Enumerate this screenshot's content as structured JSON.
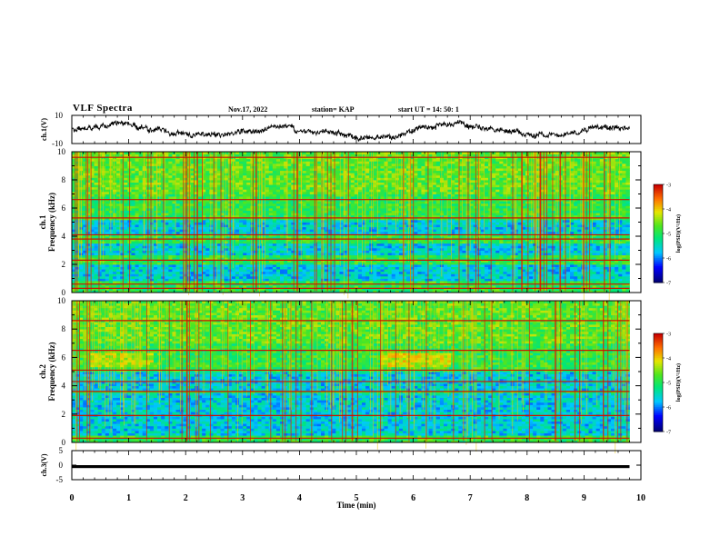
{
  "header": {
    "title": "VLF Spectra",
    "date": "Nov.17, 2022",
    "station": "station= KAP",
    "start_ut": "start  UT =   14: 50: 1"
  },
  "chart_data": [
    {
      "type": "line",
      "panel": "ch1-waveform",
      "ylabel": "ch.1(V)",
      "ylim": [
        -10,
        10
      ],
      "yticks": [
        "10",
        "-10"
      ],
      "xlim": [
        0,
        10
      ],
      "note": "noisy broadband waveform trace spanning ~0 to 9.8 min"
    },
    {
      "type": "heatmap",
      "panel": "ch1-spectrogram",
      "ylabel": "ch.1\nFrequency (kHz)",
      "ylim": [
        0,
        10
      ],
      "yticks": [
        "0",
        "2",
        "4",
        "6",
        "8",
        "10"
      ],
      "xlim": [
        0,
        10
      ],
      "colorbar": {
        "label": "log(PSD)(V²/Hz)",
        "range": [
          -7,
          -3
        ],
        "ticks": [
          "-3",
          "-4",
          "-5",
          "-6",
          "-7"
        ]
      },
      "horizontal_lines_khz": [
        0.3,
        0.6,
        2.3,
        3.8,
        4.1,
        5.3,
        6.6,
        9.6
      ],
      "bright_bands_khz": [
        [
          0.0,
          0.9
        ],
        [
          2.0,
          2.6
        ],
        [
          3.5,
          4.2
        ],
        [
          5.2,
          10
        ]
      ]
    },
    {
      "type": "heatmap",
      "panel": "ch2-spectrogram",
      "ylabel": "ch.2\nFrequency (kHz)",
      "ylim": [
        0,
        10
      ],
      "yticks": [
        "0",
        "2",
        "4",
        "6",
        "8",
        "10"
      ],
      "xlim": [
        0,
        10
      ],
      "colorbar": {
        "label": "log(PSD)(V²/Hz)",
        "range": [
          -7,
          -3
        ],
        "ticks": [
          "-3",
          "-4",
          "-5",
          "-6",
          "-7"
        ]
      },
      "horizontal_lines_khz": [
        0.3,
        1.9,
        3.6,
        4.3,
        5.1,
        6.5,
        8.6
      ],
      "bright_bands_khz": [
        [
          0.0,
          0.5
        ],
        [
          3.5,
          3.7
        ],
        [
          5.0,
          10
        ]
      ]
    },
    {
      "type": "line",
      "panel": "ch3-waveform",
      "ylabel": "ch.3(V)",
      "ylim": [
        -5,
        5
      ],
      "yticks": [
        "5",
        "0",
        "-5"
      ],
      "xlim": [
        0,
        10
      ],
      "xlabel": "Time  (min)",
      "xticks": [
        "0",
        "1",
        "2",
        "3",
        "4",
        "5",
        "6",
        "7",
        "8",
        "9",
        "10"
      ],
      "value_band": [
        -1,
        0
      ],
      "note": "flat thick black band near 0 V from 0 to 9.8 min"
    }
  ]
}
